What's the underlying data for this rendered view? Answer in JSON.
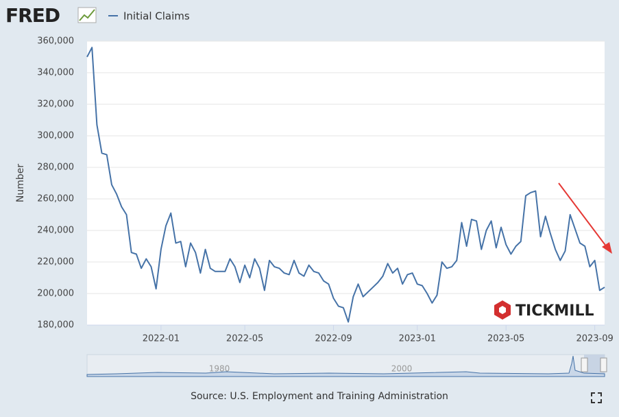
{
  "header": {
    "logo": "FRED"
  },
  "chart_data": {
    "type": "line",
    "ylabel": "Number",
    "categories": [
      null,
      null,
      null,
      null,
      null,
      null,
      null,
      null,
      null,
      null,
      null,
      null,
      null,
      null,
      null,
      "2022-01",
      null,
      null,
      null,
      null,
      null,
      null,
      null,
      null,
      null,
      null,
      null,
      null,
      null,
      null,
      null,
      null,
      "2022-05",
      null,
      null,
      null,
      null,
      null,
      null,
      null,
      null,
      null,
      null,
      null,
      null,
      null,
      null,
      null,
      null,
      null,
      "2022-09",
      null,
      null,
      null,
      null,
      null,
      null,
      null,
      null,
      null,
      null,
      null,
      null,
      null,
      null,
      null,
      null,
      "2023-01",
      null,
      null,
      null,
      null,
      null,
      null,
      null,
      null,
      null,
      null,
      null,
      null,
      null,
      null,
      null,
      null,
      null,
      "2023-05",
      null,
      null,
      null,
      null,
      null,
      null,
      null,
      null,
      null,
      null,
      null,
      null,
      null,
      null,
      null,
      null,
      null,
      "2023-09",
      null,
      null
    ],
    "series": [
      {
        "name": "Initial Claims",
        "color": "#4572a7",
        "values": [
          350000,
          356000,
          307000,
          289000,
          288000,
          269000,
          263000,
          255000,
          250000,
          226000,
          225000,
          216000,
          222000,
          217000,
          203000,
          228000,
          243000,
          251000,
          232000,
          233000,
          217000,
          232000,
          226000,
          213000,
          228000,
          216000,
          214000,
          214000,
          214000,
          222000,
          217000,
          207000,
          218000,
          210000,
          222000,
          216000,
          202000,
          221000,
          217000,
          216000,
          213000,
          212000,
          221000,
          213000,
          211000,
          218000,
          214000,
          213000,
          208000,
          206000,
          197000,
          192000,
          191000,
          182000,
          198000,
          206000,
          198000,
          201000,
          204000,
          207000,
          211000,
          219000,
          213000,
          216000,
          206000,
          212000,
          213000,
          206000,
          205000,
          200000,
          194000,
          199000,
          220000,
          216000,
          217000,
          221000,
          245000,
          230000,
          247000,
          246000,
          228000,
          240000,
          246000,
          229000,
          242000,
          231000,
          225000,
          230000,
          233000,
          262000,
          264000,
          265000,
          236000,
          249000,
          238000,
          228000,
          221000,
          227000,
          250000,
          241000,
          232000,
          230000,
          217000,
          221000,
          202000,
          204000
        ]
      }
    ],
    "ylim": [
      180000,
      360000
    ],
    "yticks": [
      {
        "value": 180000,
        "label": "180,000"
      },
      {
        "value": 200000,
        "label": "200,000"
      },
      {
        "value": 220000,
        "label": "220,000"
      },
      {
        "value": 240000,
        "label": "240,000"
      },
      {
        "value": 260000,
        "label": "260,000"
      },
      {
        "value": 280000,
        "label": "280,000"
      },
      {
        "value": 300000,
        "label": "300,000"
      },
      {
        "value": 320000,
        "label": "320,000"
      },
      {
        "value": 340000,
        "label": "340,000"
      },
      {
        "value": 360000,
        "label": "360,000"
      }
    ],
    "grid": true
  },
  "navigator": {
    "labels": [
      "1980",
      "2000"
    ]
  },
  "watermark": "TICKMILL",
  "footer": {
    "source": "Source: U.S. Employment and Training Administration"
  }
}
